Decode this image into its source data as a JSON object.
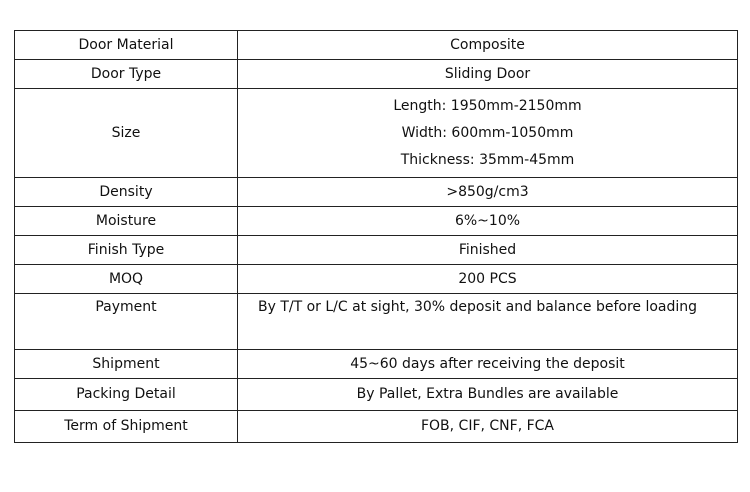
{
  "rows": [
    {
      "label": "Door Material",
      "value": [
        "Composite"
      ]
    },
    {
      "label": "Door Type",
      "value": [
        "Sliding Door"
      ]
    },
    {
      "label": "Size",
      "value": [
        "Length: 1950mm-2150mm",
        "Width: 600mm-1050mm",
        "Thickness: 35mm-45mm"
      ]
    },
    {
      "label": "Density",
      "value": [
        ">850g/cm3"
      ]
    },
    {
      "label": "Moisture",
      "value": [
        "6%~10%"
      ]
    },
    {
      "label": "Finish Type",
      "value": [
        "Finished"
      ]
    },
    {
      "label": "MOQ",
      "value": [
        "200 PCS"
      ]
    },
    {
      "label": "Payment",
      "value": [
        "By T/T or L/C at sight, 30% deposit and balance before loading"
      ]
    },
    {
      "label": "Shipment",
      "value": [
        "45~60 days after receiving the deposit"
      ]
    },
    {
      "label": "Packing Detail",
      "value": [
        "By Pallet, Extra Bundles are available"
      ]
    },
    {
      "label": "Term of Shipment",
      "value": [
        "FOB, CIF, CNF, FCA"
      ]
    }
  ]
}
